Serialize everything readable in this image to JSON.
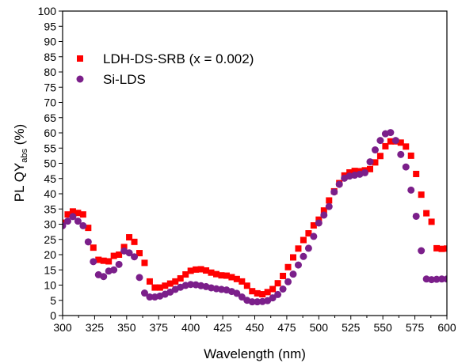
{
  "chart_data": {
    "type": "scatter",
    "title": "",
    "xlabel": "Wavelength (nm)",
    "ylabel_main": "PL QY",
    "ylabel_sub": "abs",
    "ylabel_suffix": " (%)",
    "xlim": [
      300,
      600
    ],
    "ylim": [
      0,
      100
    ],
    "xticks": [
      300,
      325,
      350,
      375,
      400,
      425,
      450,
      475,
      500,
      525,
      550,
      575,
      600
    ],
    "yticks": [
      0,
      5,
      10,
      15,
      20,
      25,
      30,
      35,
      40,
      45,
      50,
      55,
      60,
      65,
      70,
      75,
      80,
      85,
      90,
      95,
      100
    ],
    "grid": false,
    "legend_position": "top-left",
    "series": [
      {
        "name": "LDH-DS-SRB (x = 0.002)",
        "marker": "square",
        "color": "#ff0000",
        "x": [
          300,
          304,
          308,
          312,
          316,
          320,
          324,
          328,
          332,
          336,
          340,
          344,
          348,
          352,
          356,
          360,
          364,
          368,
          372,
          376,
          380,
          384,
          388,
          392,
          396,
          400,
          404,
          408,
          412,
          416,
          420,
          424,
          428,
          432,
          436,
          440,
          444,
          448,
          452,
          456,
          460,
          464,
          468,
          472,
          476,
          480,
          484,
          488,
          492,
          496,
          500,
          504,
          508,
          512,
          516,
          520,
          524,
          528,
          532,
          536,
          540,
          544,
          548,
          552,
          556,
          560,
          564,
          568,
          572,
          576,
          580,
          584,
          588,
          592,
          596,
          600
        ],
        "y": [
          30.5,
          33.2,
          34.2,
          33.7,
          33.2,
          28.8,
          22.3,
          18.3,
          18.0,
          17.8,
          19.6,
          20.0,
          22.5,
          25.7,
          24.2,
          20.5,
          17.3,
          11.2,
          9.2,
          9.2,
          9.8,
          10.5,
          11.2,
          12.2,
          13.5,
          14.7,
          15.1,
          15.2,
          14.8,
          14.1,
          13.6,
          13.2,
          13.1,
          12.6,
          12.0,
          11.2,
          9.8,
          8.0,
          7.3,
          7.0,
          7.7,
          8.7,
          10.6,
          13.0,
          15.9,
          19.1,
          22.0,
          24.8,
          27.0,
          29.6,
          31.5,
          34.5,
          37.8,
          40.8,
          43.5,
          46.0,
          47.0,
          47.5,
          47.4,
          47.7,
          48.1,
          50.3,
          52.4,
          55.6,
          57.2,
          57.2,
          56.8,
          55.5,
          52.5,
          46.5,
          39.7,
          33.6,
          30.8,
          22.1,
          21.9,
          22.0
        ]
      },
      {
        "name": "Si-LDS",
        "marker": "circle",
        "color": "#7b1f8a",
        "x": [
          300,
          304,
          308,
          312,
          316,
          320,
          324,
          328,
          332,
          336,
          340,
          344,
          348,
          352,
          356,
          360,
          364,
          368,
          372,
          376,
          380,
          384,
          388,
          392,
          396,
          400,
          404,
          408,
          412,
          416,
          420,
          424,
          428,
          432,
          436,
          440,
          444,
          448,
          452,
          456,
          460,
          464,
          468,
          472,
          476,
          480,
          484,
          488,
          492,
          496,
          500,
          504,
          508,
          512,
          516,
          520,
          524,
          528,
          532,
          536,
          540,
          544,
          548,
          552,
          556,
          560,
          564,
          568,
          572,
          576,
          580,
          584,
          588,
          592,
          596,
          600
        ],
        "y": [
          29.5,
          31.0,
          32.5,
          31.0,
          29.5,
          24.2,
          17.7,
          13.4,
          12.8,
          14.6,
          15.0,
          16.8,
          21.2,
          20.6,
          19.3,
          12.5,
          7.4,
          6.1,
          6.1,
          6.4,
          7.0,
          7.7,
          8.6,
          9.3,
          9.9,
          10.2,
          10.1,
          9.8,
          9.5,
          9.1,
          8.8,
          8.6,
          8.4,
          7.9,
          7.3,
          6.1,
          5.0,
          4.5,
          4.5,
          4.6,
          4.9,
          5.8,
          6.9,
          8.7,
          11.1,
          13.6,
          16.6,
          19.4,
          22.1,
          26.0,
          30.4,
          33.0,
          35.8,
          40.6,
          43.1,
          45.1,
          45.8,
          46.1,
          46.4,
          46.9,
          50.5,
          54.4,
          57.5,
          59.7,
          60.1,
          57.5,
          52.9,
          48.8,
          41.2,
          32.6,
          21.3,
          12.0,
          11.8,
          11.9,
          12.0,
          12.0
        ]
      }
    ]
  }
}
